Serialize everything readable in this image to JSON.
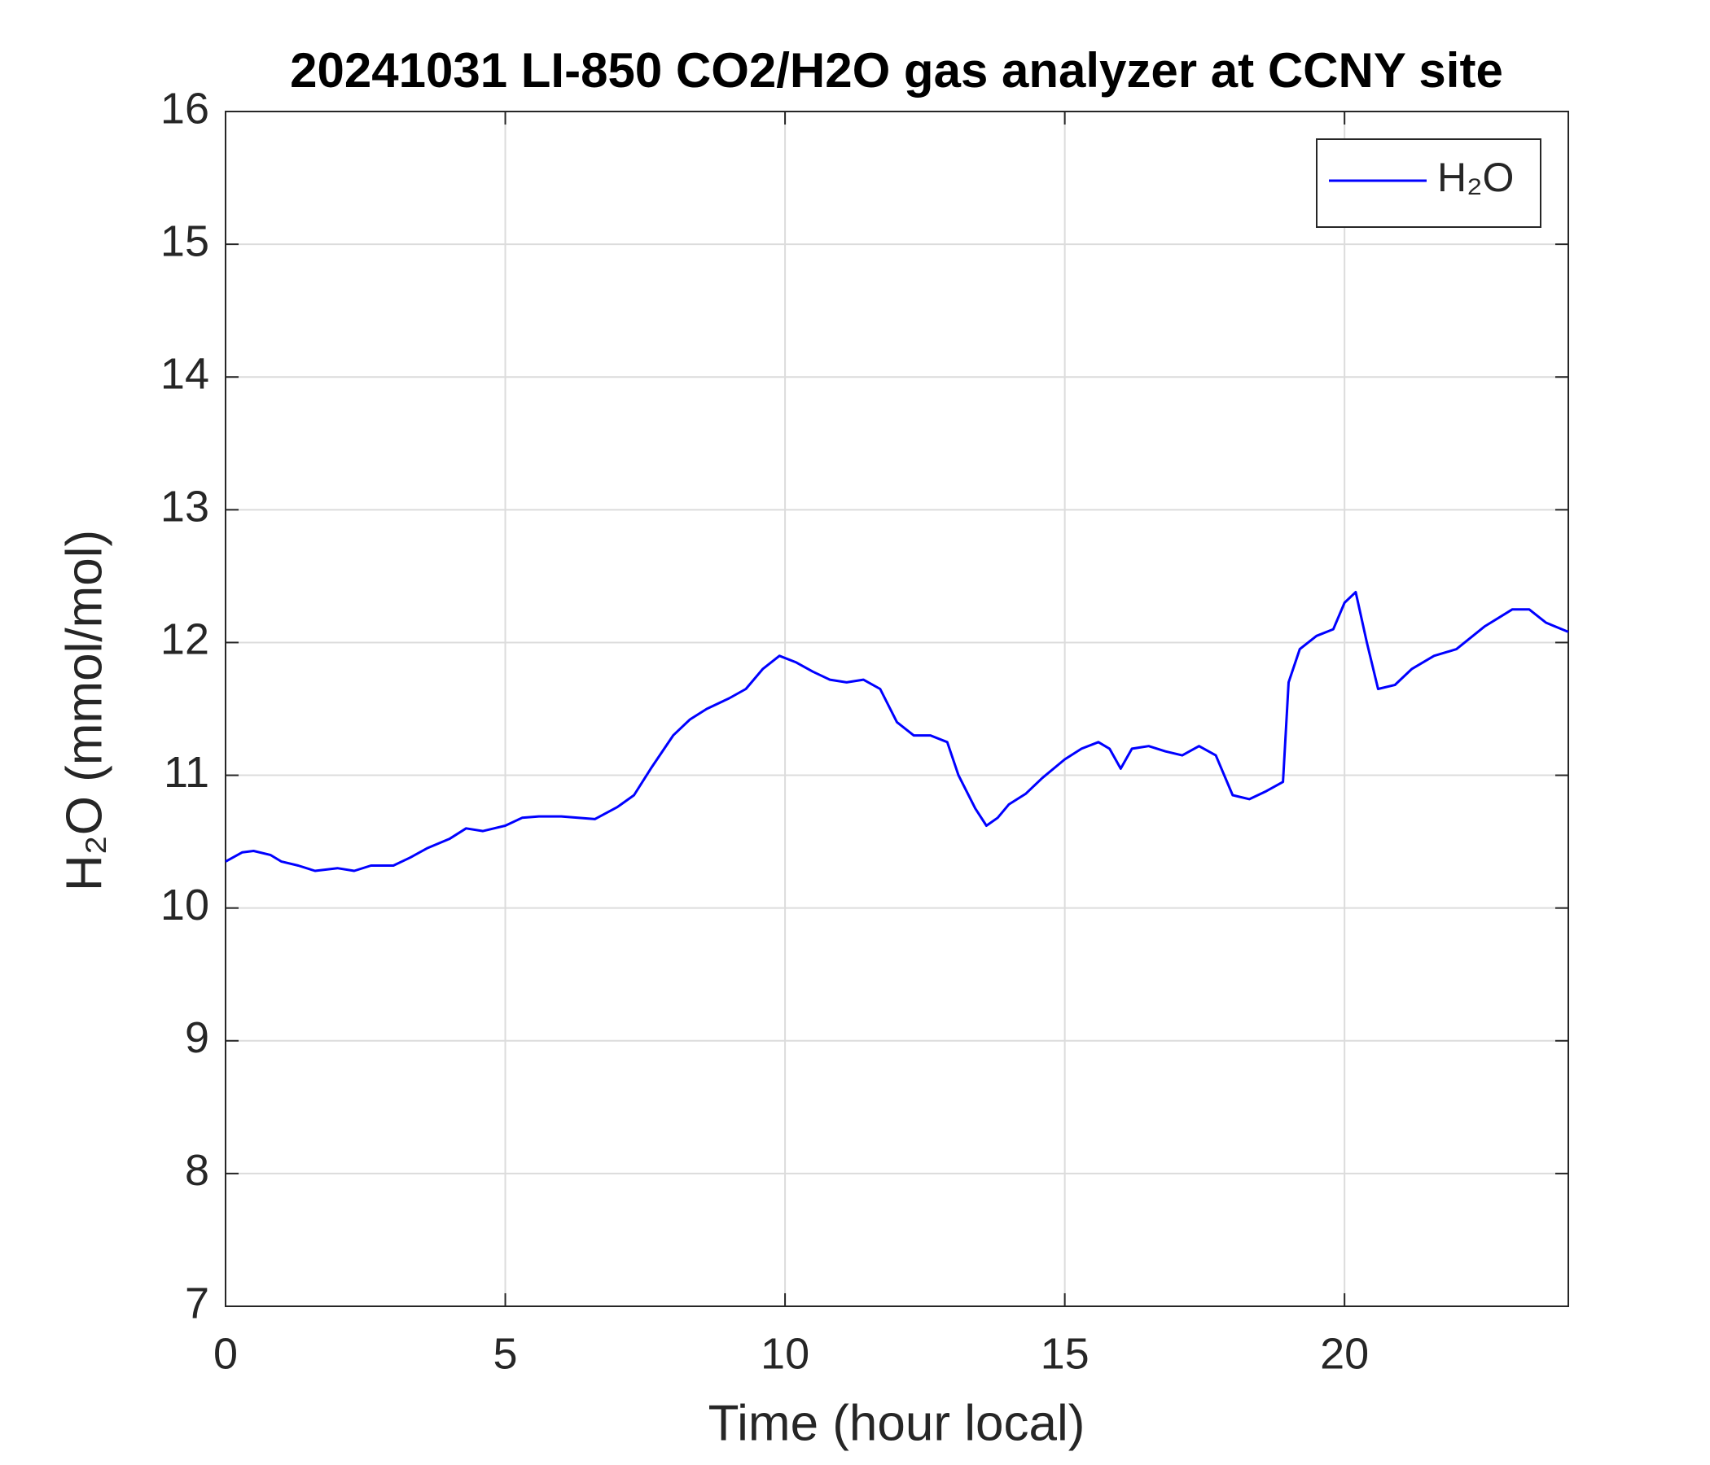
{
  "chart_data": {
    "type": "line",
    "title": "20241031 LI-850 CO2/H2O gas analyzer at CCNY site",
    "x_label": "Time (hour local)",
    "y_label": "H₂O (mmol/mol)",
    "x": [
      0,
      0.3,
      0.5,
      0.8,
      1.0,
      1.3,
      1.6,
      2.0,
      2.3,
      2.6,
      3.0,
      3.3,
      3.6,
      4.0,
      4.3,
      4.6,
      5.0,
      5.3,
      5.6,
      6.0,
      6.3,
      6.6,
      7.0,
      7.3,
      7.6,
      8.0,
      8.3,
      8.6,
      9.0,
      9.3,
      9.6,
      9.9,
      10.2,
      10.5,
      10.8,
      11.1,
      11.4,
      11.7,
      12.0,
      12.3,
      12.6,
      12.9,
      13.1,
      13.4,
      13.6,
      13.8,
      14.0,
      14.3,
      14.6,
      15.0,
      15.3,
      15.6,
      15.8,
      16.0,
      16.2,
      16.5,
      16.8,
      17.1,
      17.4,
      17.7,
      18.0,
      18.3,
      18.6,
      18.9,
      19.0,
      19.2,
      19.5,
      19.8,
      20.0,
      20.2,
      20.4,
      20.6,
      20.9,
      21.2,
      21.6,
      22.0,
      22.5,
      23.0,
      23.3,
      23.6,
      24.0
    ],
    "series": [
      {
        "name": "H₂O",
        "color": "#0000ff",
        "values": [
          10.35,
          10.42,
          10.43,
          10.4,
          10.35,
          10.32,
          10.28,
          10.3,
          10.28,
          10.32,
          10.32,
          10.38,
          10.45,
          10.52,
          10.6,
          10.58,
          10.62,
          10.68,
          10.69,
          10.69,
          10.68,
          10.67,
          10.76,
          10.85,
          11.05,
          11.3,
          11.42,
          11.5,
          11.58,
          11.65,
          11.8,
          11.9,
          11.85,
          11.78,
          11.72,
          11.7,
          11.72,
          11.65,
          11.4,
          11.3,
          11.3,
          11.25,
          11.0,
          10.75,
          10.62,
          10.68,
          10.78,
          10.86,
          10.98,
          11.12,
          11.2,
          11.25,
          11.2,
          11.05,
          11.2,
          11.22,
          11.18,
          11.15,
          11.22,
          11.15,
          10.85,
          10.82,
          10.88,
          10.95,
          11.7,
          11.95,
          12.05,
          12.1,
          12.3,
          12.38,
          12.0,
          11.65,
          11.68,
          11.8,
          11.9,
          11.95,
          12.12,
          12.25,
          12.25,
          12.15,
          12.08
        ]
      }
    ],
    "xlim": [
      0,
      24
    ],
    "xticks": [
      0,
      5,
      10,
      15,
      20
    ],
    "ylim": [
      7,
      16
    ],
    "yticks": [
      7,
      8,
      9,
      10,
      11,
      12,
      13,
      14,
      15,
      16
    ],
    "grid": true,
    "legend": "top-right"
  }
}
